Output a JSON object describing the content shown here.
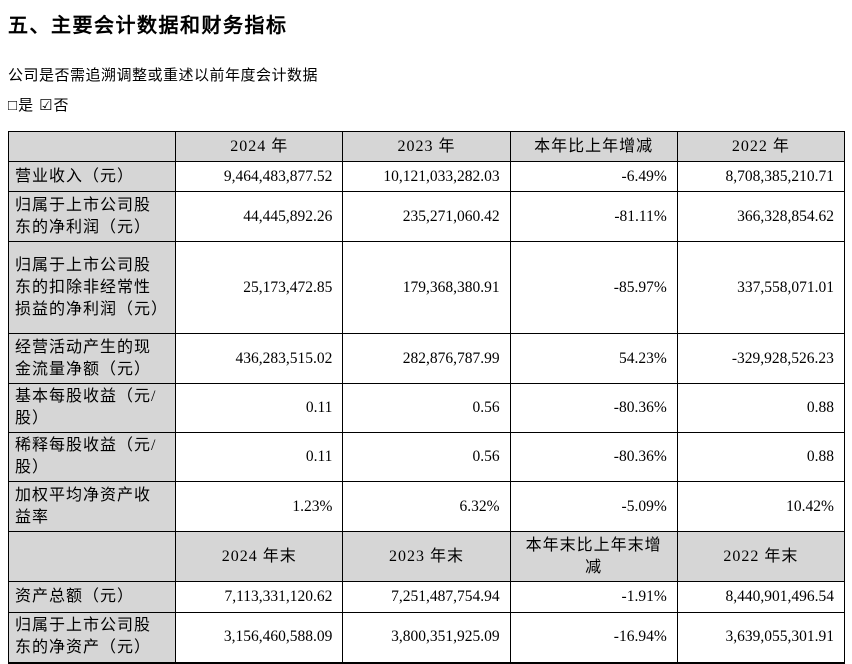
{
  "doc": {
    "title": "五、主要会计数据和财务指标",
    "question": "公司是否需追溯调整或重述以前年度会计数据",
    "options": {
      "yes_box": "□",
      "yes_label": "是",
      "no_box": "☑",
      "no_label": "否"
    }
  },
  "colors": {
    "header_fill": "#d6d6d6",
    "border": "#000000",
    "text": "#000000",
    "background": "#ffffff"
  },
  "table": {
    "rows": [
      {
        "cells": [
          "",
          "2024 年",
          "2023 年",
          "本年比上年增减",
          "2022 年"
        ]
      },
      {
        "cells": [
          "营业收入（元）",
          "9,464,483,877.52",
          "10,121,033,282.03",
          "-6.49%",
          "8,708,385,210.71"
        ]
      },
      {
        "cells": [
          "归属于上市公司股东的净利润（元）",
          "44,445,892.26",
          "235,271,060.42",
          "-81.11%",
          "366,328,854.62"
        ]
      },
      {
        "cells": [
          "归属于上市公司股东的扣除非经常性损益的净利润（元）",
          "25,173,472.85",
          "179,368,380.91",
          "-85.97%",
          "337,558,071.01"
        ]
      },
      {
        "cells": [
          "经营活动产生的现金流量净额（元）",
          "436,283,515.02",
          "282,876,787.99",
          "54.23%",
          "-329,928,526.23"
        ]
      },
      {
        "cells": [
          "基本每股收益（元/股）",
          "0.11",
          "0.56",
          "-80.36%",
          "0.88"
        ]
      },
      {
        "cells": [
          "稀释每股收益（元/股）",
          "0.11",
          "0.56",
          "-80.36%",
          "0.88"
        ]
      },
      {
        "cells": [
          "加权平均净资产收益率",
          "1.23%",
          "6.32%",
          "-5.09%",
          "10.42%"
        ]
      },
      {
        "cells": [
          "",
          "2024 年末",
          "2023 年末",
          "本年末比上年末增减",
          "2022 年末"
        ]
      },
      {
        "cells": [
          "资产总额（元）",
          "7,113,331,120.62",
          "7,251,487,754.94",
          "-1.91%",
          "8,440,901,496.54"
        ]
      },
      {
        "cells": [
          "归属于上市公司股东的净资产（元）",
          "3,156,460,588.09",
          "3,800,351,925.09",
          "-16.94%",
          "3,639,055,301.91"
        ]
      }
    ]
  }
}
